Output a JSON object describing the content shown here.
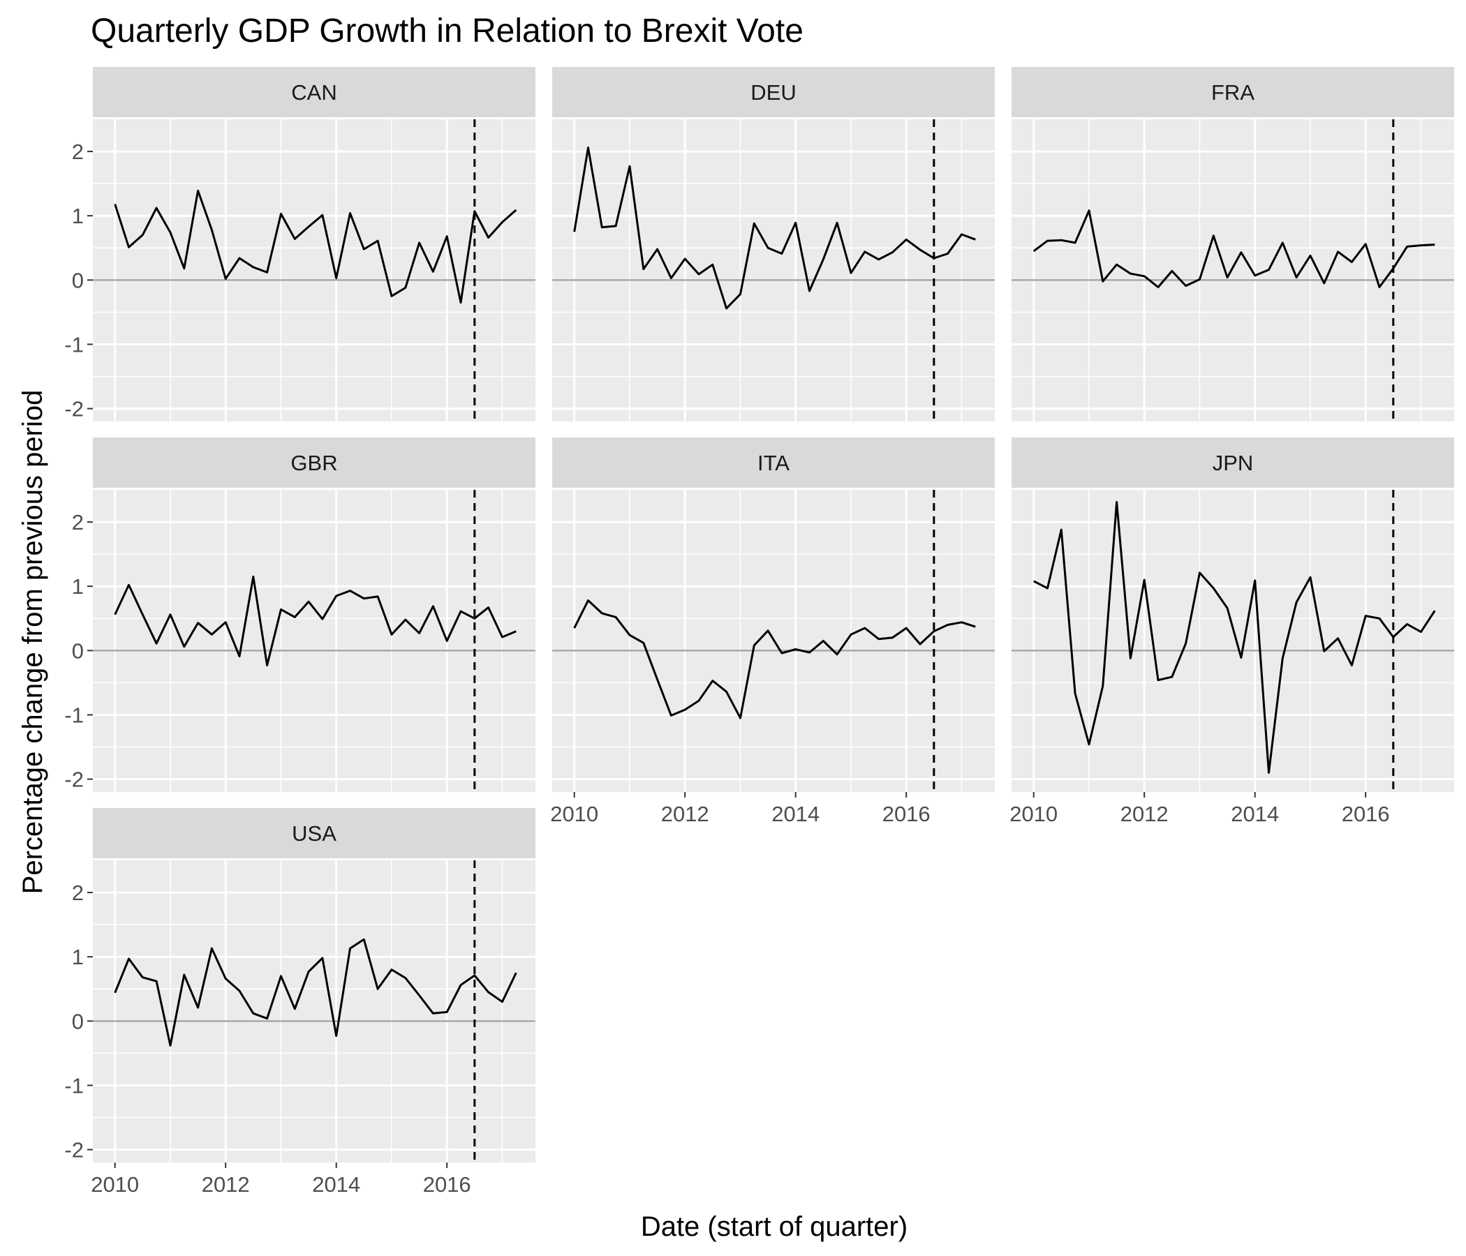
{
  "chart_data": {
    "type": "line",
    "title": "Quarterly GDP Growth in Relation to Brexit Vote",
    "xlabel": "Date (start of quarter)",
    "ylabel": "Percentage change from previous period",
    "ylim": [
      -2.2,
      2.5
    ],
    "xlim": [
      2009.6,
      2017.6
    ],
    "x_ticks": [
      2010,
      2012,
      2014,
      2016
    ],
    "x_tick_labels": [
      "2010",
      "2012",
      "2014",
      "2016"
    ],
    "y_ticks": [
      -2,
      -1,
      0,
      1,
      2
    ],
    "y_tick_labels": [
      "-2",
      "-1",
      "0",
      "1",
      "2"
    ],
    "reference_lines": {
      "horizontal_y": 0,
      "vertical_dashed_x": 2016.5
    },
    "grid": true,
    "x_start": 2010,
    "x_step": 0.25,
    "panels": [
      {
        "name": "CAN",
        "values": [
          1.18,
          0.51,
          0.7,
          1.12,
          0.74,
          0.18,
          1.39,
          0.78,
          0.02,
          0.34,
          0.2,
          0.12,
          1.03,
          0.64,
          0.83,
          1.01,
          0.03,
          1.04,
          0.48,
          0.61,
          -0.25,
          -0.12,
          0.58,
          0.13,
          0.68,
          -0.35,
          1.07,
          0.66,
          0.9,
          1.09
        ]
      },
      {
        "name": "DEU",
        "values": [
          0.75,
          2.06,
          0.82,
          0.84,
          1.77,
          0.17,
          0.48,
          0.03,
          0.33,
          0.09,
          0.24,
          -0.44,
          -0.22,
          0.88,
          0.5,
          0.41,
          0.89,
          -0.17,
          0.32,
          0.89,
          0.11,
          0.44,
          0.32,
          0.43,
          0.63,
          0.47,
          0.34,
          0.41,
          0.71,
          0.63
        ]
      },
      {
        "name": "FRA",
        "values": [
          0.45,
          0.61,
          0.62,
          0.58,
          1.08,
          -0.02,
          0.24,
          0.1,
          0.06,
          -0.11,
          0.14,
          -0.09,
          0.01,
          0.69,
          0.04,
          0.43,
          0.07,
          0.16,
          0.58,
          0.04,
          0.38,
          -0.05,
          0.44,
          0.28,
          0.56,
          -0.11,
          0.18,
          0.52,
          0.54,
          0.55
        ]
      },
      {
        "name": "GBR",
        "values": [
          0.56,
          1.02,
          0.56,
          0.11,
          0.56,
          0.06,
          0.43,
          0.25,
          0.44,
          -0.09,
          1.15,
          -0.23,
          0.64,
          0.52,
          0.76,
          0.49,
          0.85,
          0.93,
          0.81,
          0.84,
          0.25,
          0.48,
          0.27,
          0.69,
          0.15,
          0.61,
          0.5,
          0.67,
          0.21,
          0.3
        ]
      },
      {
        "name": "ITA",
        "values": [
          0.35,
          0.78,
          0.58,
          0.52,
          0.24,
          0.12,
          -0.45,
          -1.01,
          -0.92,
          -0.78,
          -0.47,
          -0.64,
          -1.05,
          0.08,
          0.31,
          -0.04,
          0.02,
          -0.03,
          0.15,
          -0.06,
          0.25,
          0.35,
          0.18,
          0.2,
          0.35,
          0.1,
          0.3,
          0.4,
          0.44,
          0.37
        ]
      },
      {
        "name": "JPN",
        "values": [
          1.08,
          0.97,
          1.88,
          -0.67,
          -1.46,
          -0.55,
          2.31,
          -0.12,
          1.1,
          -0.46,
          -0.41,
          0.11,
          1.21,
          0.97,
          0.66,
          -0.11,
          1.09,
          -1.9,
          -0.12,
          0.75,
          1.14,
          -0.01,
          0.19,
          -0.23,
          0.54,
          0.5,
          0.21,
          0.41,
          0.29,
          0.62
        ]
      },
      {
        "name": "USA",
        "values": [
          0.44,
          0.97,
          0.68,
          0.62,
          -0.38,
          0.72,
          0.21,
          1.13,
          0.66,
          0.47,
          0.12,
          0.04,
          0.7,
          0.19,
          0.77,
          0.98,
          -0.23,
          1.13,
          1.27,
          0.5,
          0.8,
          0.67,
          0.4,
          0.12,
          0.14,
          0.56,
          0.71,
          0.45,
          0.3,
          0.75
        ]
      }
    ]
  }
}
